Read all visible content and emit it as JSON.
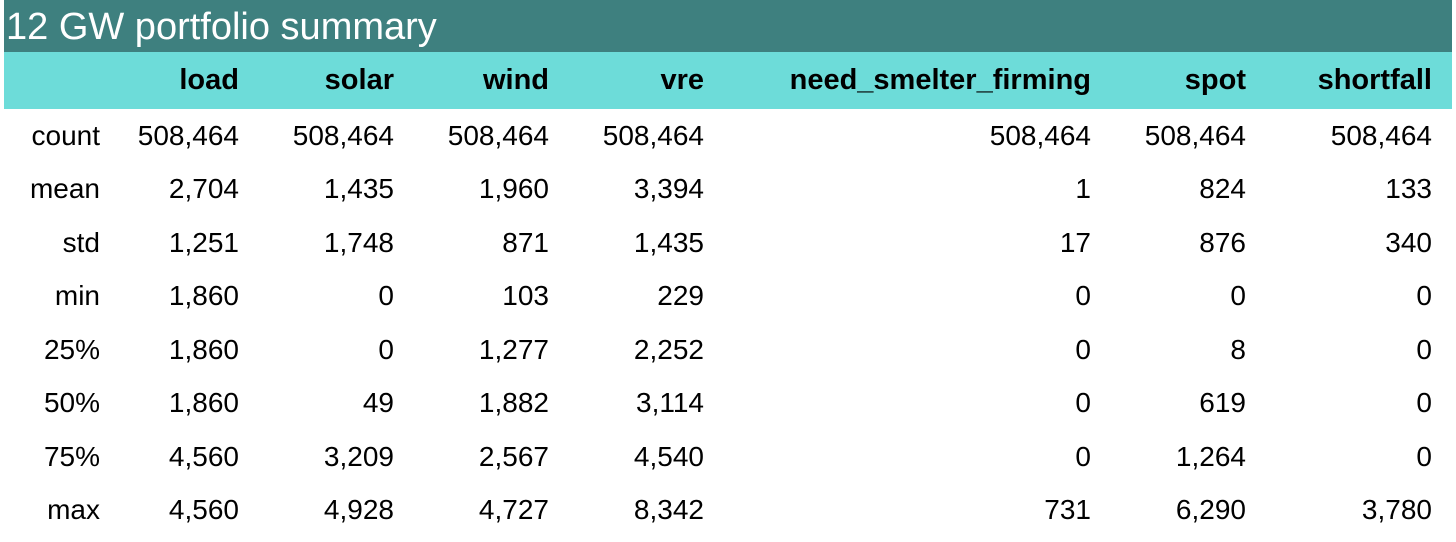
{
  "title": "12 GW portfolio summary",
  "colors": {
    "title_bg": "#3e807f",
    "header_bg": "#6ddcd9",
    "title_text": "#ffffff"
  },
  "table": {
    "columns": [
      "load",
      "solar",
      "wind",
      "vre",
      "need_smelter_firming",
      "spot",
      "shortfall"
    ],
    "rows": [
      {
        "label": "count",
        "values": [
          "508,464",
          "508,464",
          "508,464",
          "508,464",
          "508,464",
          "508,464",
          "508,464"
        ]
      },
      {
        "label": "mean",
        "values": [
          "2,704",
          "1,435",
          "1,960",
          "3,394",
          "1",
          "824",
          "133"
        ]
      },
      {
        "label": "std",
        "values": [
          "1,251",
          "1,748",
          "871",
          "1,435",
          "17",
          "876",
          "340"
        ]
      },
      {
        "label": "min",
        "values": [
          "1,860",
          "0",
          "103",
          "229",
          "0",
          "0",
          "0"
        ]
      },
      {
        "label": "25%",
        "values": [
          "1,860",
          "0",
          "1,277",
          "2,252",
          "0",
          "8",
          "0"
        ]
      },
      {
        "label": "50%",
        "values": [
          "1,860",
          "49",
          "1,882",
          "3,114",
          "0",
          "619",
          "0"
        ]
      },
      {
        "label": "75%",
        "values": [
          "4,560",
          "3,209",
          "2,567",
          "4,540",
          "0",
          "1,264",
          "0"
        ]
      },
      {
        "label": "max",
        "values": [
          "4,560",
          "4,928",
          "4,727",
          "8,342",
          "731",
          "6,290",
          "3,780"
        ]
      }
    ]
  }
}
